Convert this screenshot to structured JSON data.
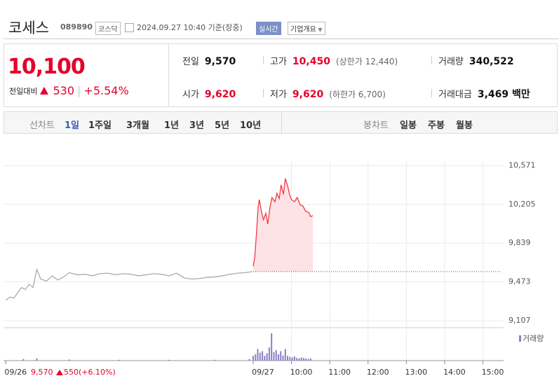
{
  "header": {
    "name": "코세스",
    "code": "089890",
    "market": "코스닥",
    "timestamp": "2024.09.27 10:40 기준(장중)",
    "realtime": "실시간",
    "company_info": "기업개요"
  },
  "quote": {
    "price": "10,100",
    "change_label": "전일대비",
    "change": "530",
    "change_pct": "+5.54%",
    "stats": [
      {
        "label": "전일",
        "value": "9,570",
        "color": "#111"
      },
      {
        "label": "고가",
        "value": "10,450",
        "note": "(상한가 12,440)",
        "color": "#e4002b"
      },
      {
        "label": "거래량",
        "value": "340,522",
        "color": "#111"
      },
      {
        "label": "시가",
        "value": "9,620",
        "color": "#e4002b"
      },
      {
        "label": "저가",
        "value": "9,620",
        "note": "(하한가 6,700)",
        "color": "#e4002b"
      },
      {
        "label": "거래대금",
        "value": "3,469 백만",
        "color": "#111"
      }
    ]
  },
  "tabs": {
    "line_label": "선차트",
    "line": [
      "1일",
      "1주일",
      "3개월",
      "1년",
      "3년",
      "5년",
      "10년"
    ],
    "candle_label": "봉차트",
    "candle": [
      "일봉",
      "주봉",
      "월봉"
    ]
  },
  "chart_data": {
    "type": "line",
    "xlim": [
      2.48,
      15.54
    ],
    "ylim": [
      9040,
      10780
    ],
    "xticks": [
      {
        "value": 2.54,
        "label": "09/26"
      },
      {
        "value": 9,
        "label": "09/27"
      },
      {
        "value": 10,
        "label": "10:00"
      },
      {
        "value": 11,
        "label": "11:00"
      },
      {
        "value": 12,
        "label": "12:00"
      },
      {
        "value": 13,
        "label": "13:00"
      },
      {
        "value": 14,
        "label": "14:00"
      },
      {
        "value": 15,
        "label": "15:00"
      }
    ],
    "yticks": [
      {
        "value": 10571,
        "label": "10,571"
      },
      {
        "value": 10205,
        "label": "10,205"
      },
      {
        "value": 9839,
        "label": "9,839"
      },
      {
        "value": 9473,
        "label": "9,473"
      },
      {
        "value": 9107,
        "label": "9,107"
      }
    ],
    "grid": true,
    "baseline": 9570,
    "series": [
      {
        "color": "#aaaaaa",
        "x": [
          2.54,
          2.65,
          2.75,
          2.85,
          2.95,
          3.05,
          3.15,
          3.25,
          3.35,
          3.45,
          3.6,
          3.75,
          3.9,
          4.05,
          4.2,
          4.4,
          4.6,
          4.8,
          5.0,
          5.2,
          5.4,
          5.6,
          5.8,
          6.0,
          6.2,
          6.4,
          6.6,
          6.8,
          7.0,
          7.2,
          7.4,
          7.6,
          7.8,
          8.0,
          8.2,
          8.4,
          8.6,
          8.8,
          8.98
        ],
        "values": [
          9300,
          9330,
          9320,
          9370,
          9420,
          9400,
          9450,
          9420,
          9590,
          9500,
          9480,
          9530,
          9490,
          9520,
          9560,
          9540,
          9545,
          9530,
          9550,
          9555,
          9540,
          9550,
          9545,
          9530,
          9540,
          9550,
          9545,
          9530,
          9555,
          9510,
          9500,
          9505,
          9515,
          9520,
          9530,
          9545,
          9555,
          9560,
          9570
        ]
      },
      {
        "color": "#ee3a43",
        "fill": "#fde3e5",
        "x": [
          9,
          9.04,
          9.09,
          9.13,
          9.16,
          9.22,
          9.27,
          9.33,
          9.38,
          9.44,
          9.49,
          9.57,
          9.62,
          9.68,
          9.73,
          9.79,
          9.84,
          9.9,
          9.95,
          10,
          10.08,
          10.15,
          10.23,
          10.3,
          10.37,
          10.45,
          10.5,
          10.56
        ],
        "values": [
          9620,
          9700,
          9950,
          10180,
          10250,
          10130,
          10060,
          10120,
          10020,
          10180,
          10270,
          10230,
          10310,
          10260,
          10390,
          10300,
          10450,
          10380,
          10300,
          10250,
          10230,
          10270,
          10200,
          10190,
          10140,
          10130,
          10090,
          10100
        ]
      }
    ],
    "volume": {
      "name": "거래량",
      "color": "#8b7fc4",
      "ylim": [
        0,
        60000
      ],
      "x": [
        3.0,
        3.35,
        4.2,
        5.5,
        6.8,
        8.0,
        8.9,
        9.0,
        9.06,
        9.12,
        9.18,
        9.24,
        9.3,
        9.36,
        9.42,
        9.48,
        9.54,
        9.6,
        9.66,
        9.72,
        9.78,
        9.84,
        9.9,
        9.96,
        10.02,
        10.08,
        10.14,
        10.2,
        10.26,
        10.32,
        10.38,
        10.44,
        10.5
      ],
      "values": [
        3000,
        4000,
        2000,
        1500,
        1500,
        1500,
        3000,
        9000,
        12000,
        22000,
        15000,
        18000,
        9000,
        14000,
        25000,
        52000,
        16000,
        20000,
        12000,
        18000,
        10000,
        22000,
        9000,
        7000,
        6000,
        8000,
        5000,
        4000,
        6000,
        5000,
        4000,
        3000,
        4000
      ]
    },
    "prior_day": {
      "close": "9,570",
      "change": "550",
      "change_pct": "(+6.10%)"
    }
  }
}
